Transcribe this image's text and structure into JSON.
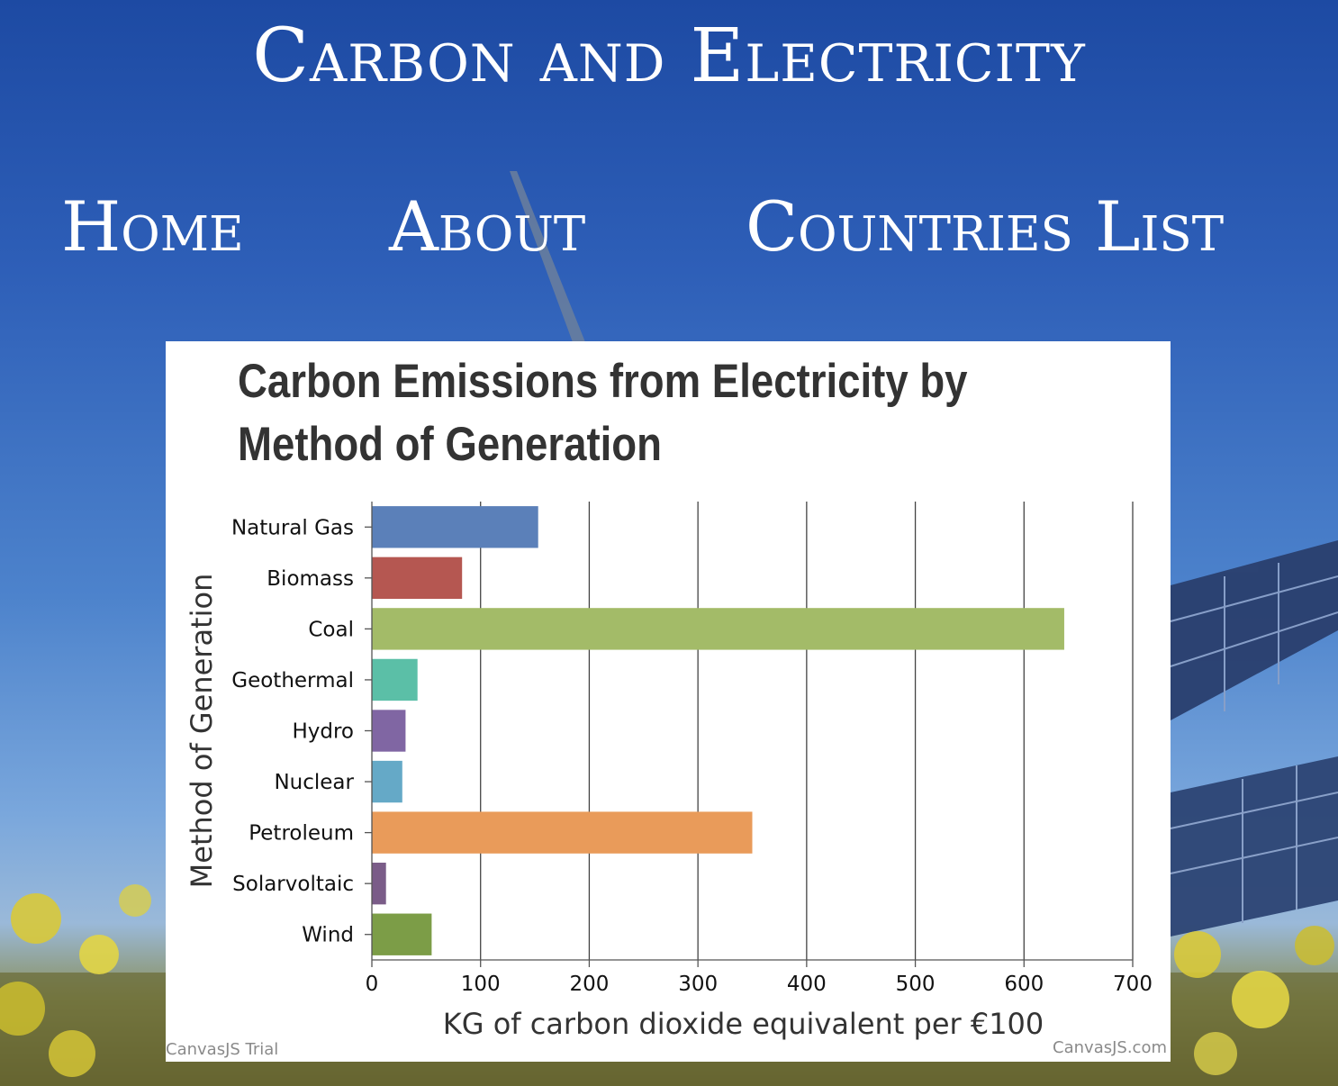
{
  "site": {
    "title": "Carbon and Electricity"
  },
  "nav": {
    "home": "Home",
    "about": "About",
    "countries": "Countries List"
  },
  "chart_data": {
    "type": "bar",
    "orientation": "horizontal",
    "title": "Carbon Emissions from Electricity by Method of Generation",
    "xlabel": "KG of carbon dioxide equivalent per €100",
    "ylabel": "Method of Generation",
    "categories": [
      "Natural Gas",
      "Biomass",
      "Coal",
      "Geothermal",
      "Hydro",
      "Nuclear",
      "Petroleum",
      "Solarvoltaic",
      "Wind"
    ],
    "values": [
      153,
      83,
      637,
      42,
      31,
      28,
      350,
      13,
      55
    ],
    "colors": [
      "#5b80b9",
      "#b55751",
      "#a3bb68",
      "#5bbfa7",
      "#8066a3",
      "#65a9c7",
      "#e99b5a",
      "#7a5c88",
      "#7c9d47"
    ],
    "xlim": [
      0,
      700
    ],
    "xticks": [
      0,
      100,
      200,
      300,
      400,
      500,
      600,
      700
    ],
    "grid": true,
    "legend": "none"
  },
  "watermarks": {
    "left": "CanvasJS Trial",
    "right": "CanvasJS.com"
  }
}
